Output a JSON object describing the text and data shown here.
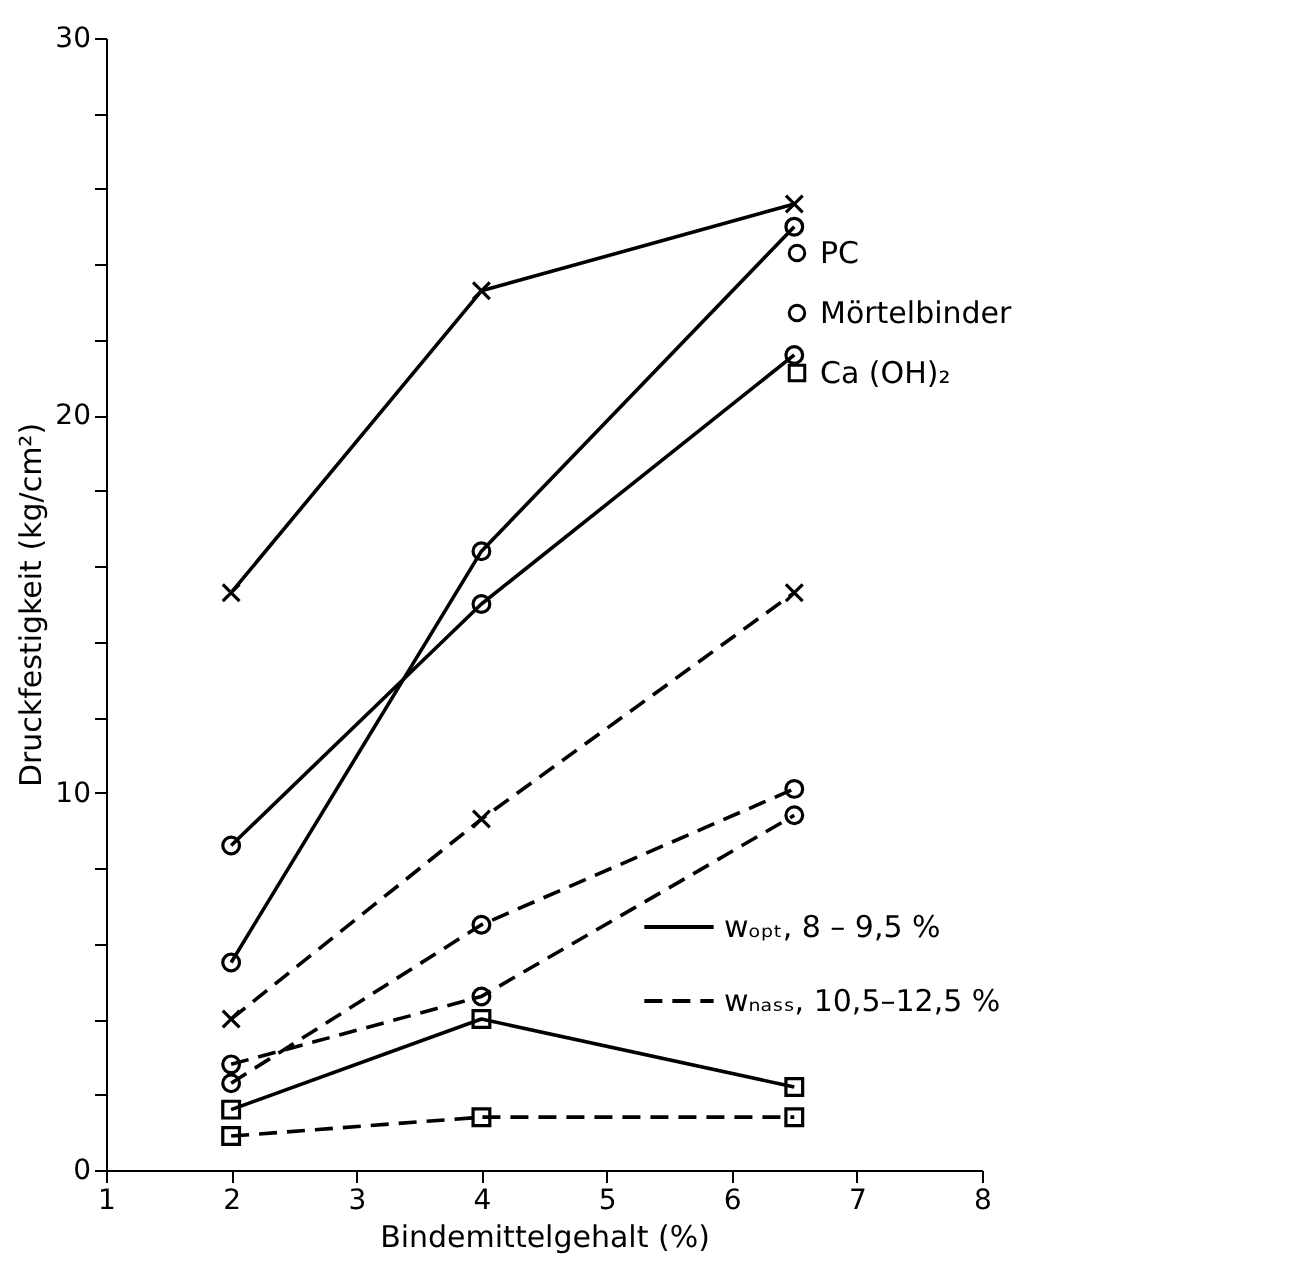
{
  "chart_data": {
    "type": "line",
    "xlabel": "Bindemittelgehalt (%)",
    "ylabel": "Druckfestigkeit (kg/cm²)",
    "x": [
      2,
      4,
      6.5
    ],
    "series": [
      {
        "name": "PC",
        "color": "#000000",
        "values": [
          8.6,
          15.0,
          21.6
        ],
        "marker": "circle",
        "line_style": "solid"
      },
      {
        "color": "#000000",
        "values": [
          2.8,
          4.6,
          9.4
        ],
        "marker": "circle",
        "line_style": "dashed"
      },
      {
        "color": "#000000",
        "values": [
          15.3,
          23.3,
          25.6
        ],
        "marker": "cross",
        "line_style": "solid"
      },
      {
        "color": "#000000",
        "values": [
          4.0,
          9.3,
          15.3
        ],
        "marker": "cross",
        "line_style": "dashed"
      },
      {
        "name": "Mörtelbinder",
        "color": "#000000",
        "values": [
          5.5,
          16.4,
          25.0
        ],
        "marker": "circle",
        "line_style": "solid"
      },
      {
        "color": "#000000",
        "values": [
          2.3,
          6.5,
          10.1
        ],
        "marker": "circle",
        "line_style": "dashed"
      },
      {
        "name": "Ca (OH)₂",
        "color": "#000000",
        "values": [
          1.6,
          4.0,
          2.2
        ],
        "marker": "square",
        "line_style": "solid"
      },
      {
        "color": "#000000",
        "values": [
          0.9,
          1.4,
          1.4
        ],
        "marker": "square",
        "line_style": "dashed"
      }
    ],
    "annotations": [
      "wₒₚₜ,  8 – 9,5 %",
      "wₙₐₛₛ, 10,5–12,5 %"
    ],
    "xlim": [
      1,
      8
    ],
    "xticks": [
      1,
      2,
      3,
      4,
      5,
      6,
      7,
      8
    ],
    "ylim": [
      0,
      30
    ],
    "yticks": [
      0,
      {
        "value": 2,
        "label": null
      },
      {
        "value": 4,
        "label": null
      },
      {
        "value": 6,
        "label": null
      },
      {
        "value": 8,
        "label": null
      },
      10,
      {
        "value": 12,
        "label": null
      },
      {
        "value": 14,
        "label": null
      },
      {
        "value": 16,
        "label": null
      },
      {
        "value": 18,
        "label": null
      },
      20,
      {
        "value": 22,
        "label": null
      },
      {
        "value": 24,
        "label": null
      },
      {
        "value": 26,
        "label": null
      },
      {
        "value": 28,
        "label": null
      },
      30
    ],
    "grid": false,
    "legend": "top right"
  }
}
